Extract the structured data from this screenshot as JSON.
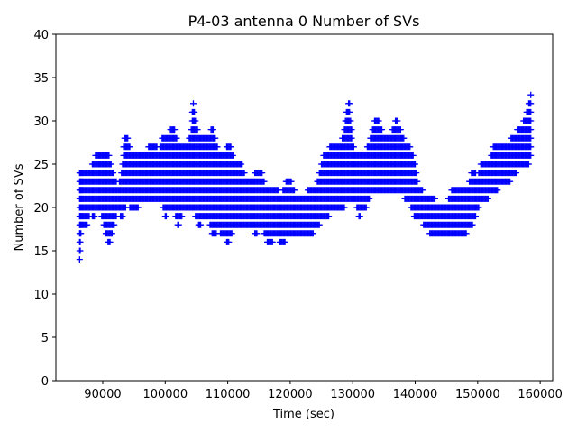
{
  "chart_data": {
    "type": "scatter",
    "title": "P4-03 antenna 0 Number of SVs",
    "xlabel": "Time (sec)",
    "ylabel": "Number of SVs",
    "xlim": [
      82500,
      162000
    ],
    "ylim": [
      0,
      40
    ],
    "x_ticks": [
      90000,
      100000,
      110000,
      120000,
      130000,
      140000,
      150000,
      160000
    ],
    "x_tick_labels": [
      "90000",
      "100000",
      "110000",
      "120000",
      "130000",
      "140000",
      "150000",
      "160000"
    ],
    "y_ticks": [
      0,
      5,
      10,
      15,
      20,
      25,
      30,
      35,
      40
    ],
    "y_tick_labels": [
      "0",
      "5",
      "10",
      "15",
      "20",
      "25",
      "30",
      "35",
      "40"
    ],
    "marker": "+",
    "color": "#0000ff",
    "grid": false,
    "series": [
      {
        "x": [
          86300,
          86600,
          87000,
          87500,
          88000,
          88500,
          89000,
          89500,
          90000,
          90500,
          91000,
          91500,
          92000,
          92500,
          93000,
          93500,
          94000,
          94500,
          95000,
          95500,
          96000,
          96500,
          97000,
          97500,
          98000,
          98500,
          99000,
          99500,
          100000,
          100500,
          101000,
          101500,
          102000,
          102500,
          103000,
          103500,
          104000,
          104500,
          105000,
          105500,
          106000,
          106500,
          107000,
          107500,
          108000,
          108500,
          109000,
          109500,
          110000,
          110500,
          111000,
          111500,
          112000,
          112500,
          113000,
          113500,
          114000,
          114500,
          115000,
          115500,
          116000,
          116500,
          117000,
          117500,
          118000,
          118500,
          119000,
          119500,
          120000,
          120500,
          121000,
          121500,
          122000,
          122500,
          123000,
          123500,
          124000,
          124500,
          125000,
          125500,
          126000,
          126500,
          127000,
          127500,
          128000,
          128500,
          129000,
          129500,
          130000,
          130500,
          131000,
          131500,
          132000,
          132500,
          133000,
          133500,
          134000,
          134500,
          135000,
          135500,
          136000,
          136500,
          137000,
          137500,
          138000,
          138500,
          139000,
          139500,
          140000,
          140500,
          141000,
          141500,
          142000,
          142500,
          143000,
          143500,
          144000,
          144500,
          145000,
          145500,
          146000,
          146500,
          147000,
          147500,
          148000,
          148500,
          149000,
          149500,
          150000,
          150500,
          151000,
          151500,
          152000,
          152500,
          153000,
          153500,
          154000,
          154500,
          155000,
          155500,
          156000,
          156500,
          157000,
          157500,
          158000,
          158500
        ],
        "y_min": [
          14,
          18,
          18,
          18,
          20,
          19,
          20,
          20,
          19,
          17,
          16,
          17,
          19,
          20,
          19,
          20,
          21,
          20,
          20,
          20,
          21,
          21,
          21,
          21,
          21,
          21,
          21,
          21,
          19,
          20,
          20,
          20,
          18,
          19,
          20,
          20,
          20,
          20,
          19,
          18,
          19,
          19,
          19,
          17,
          17,
          18,
          17,
          17,
          16,
          17,
          18,
          18,
          18,
          18,
          18,
          18,
          18,
          17,
          18,
          18,
          17,
          16,
          16,
          17,
          17,
          16,
          16,
          17,
          17,
          17,
          17,
          17,
          17,
          17,
          17,
          17,
          18,
          18,
          19,
          19,
          19,
          20,
          20,
          20,
          20,
          20,
          21,
          21,
          21,
          21,
          19,
          20,
          20,
          21,
          22,
          22,
          22,
          22,
          22,
          22,
          22,
          22,
          22,
          22,
          22,
          21,
          21,
          20,
          19,
          19,
          19,
          18,
          18,
          17,
          17,
          17,
          17,
          17,
          17,
          17,
          17,
          17,
          17,
          17,
          17,
          18,
          18,
          19,
          20,
          21,
          21,
          21,
          22,
          22,
          22,
          23,
          23,
          23,
          23,
          24,
          24,
          25,
          25,
          25,
          25,
          26
        ],
        "y_max": [
          24,
          24,
          24,
          24,
          24,
          25,
          26,
          26,
          26,
          26,
          26,
          24,
          23,
          22,
          24,
          28,
          28,
          26,
          26,
          26,
          26,
          26,
          26,
          27,
          27,
          27,
          26,
          28,
          28,
          28,
          29,
          29,
          27,
          27,
          27,
          27,
          28,
          32,
          29,
          28,
          28,
          28,
          28,
          29,
          28,
          26,
          26,
          26,
          27,
          27,
          25,
          25,
          25,
          24,
          23,
          23,
          23,
          24,
          24,
          24,
          22,
          22,
          22,
          22,
          22,
          21,
          22,
          23,
          23,
          22,
          21,
          21,
          21,
          21,
          22,
          22,
          22,
          23,
          25,
          26,
          26,
          27,
          27,
          27,
          27,
          28,
          31,
          32,
          27,
          26,
          26,
          26,
          26,
          27,
          28,
          30,
          30,
          29,
          28,
          28,
          28,
          29,
          30,
          29,
          28,
          27,
          27,
          26,
          25,
          22,
          22,
          21,
          21,
          21,
          21,
          20,
          20,
          20,
          20,
          21,
          22,
          22,
          22,
          22,
          22,
          22,
          24,
          24,
          23,
          25,
          25,
          25,
          25,
          27,
          27,
          27,
          27,
          27,
          27,
          28,
          28,
          29,
          29,
          30,
          31,
          33
        ]
      }
    ]
  }
}
